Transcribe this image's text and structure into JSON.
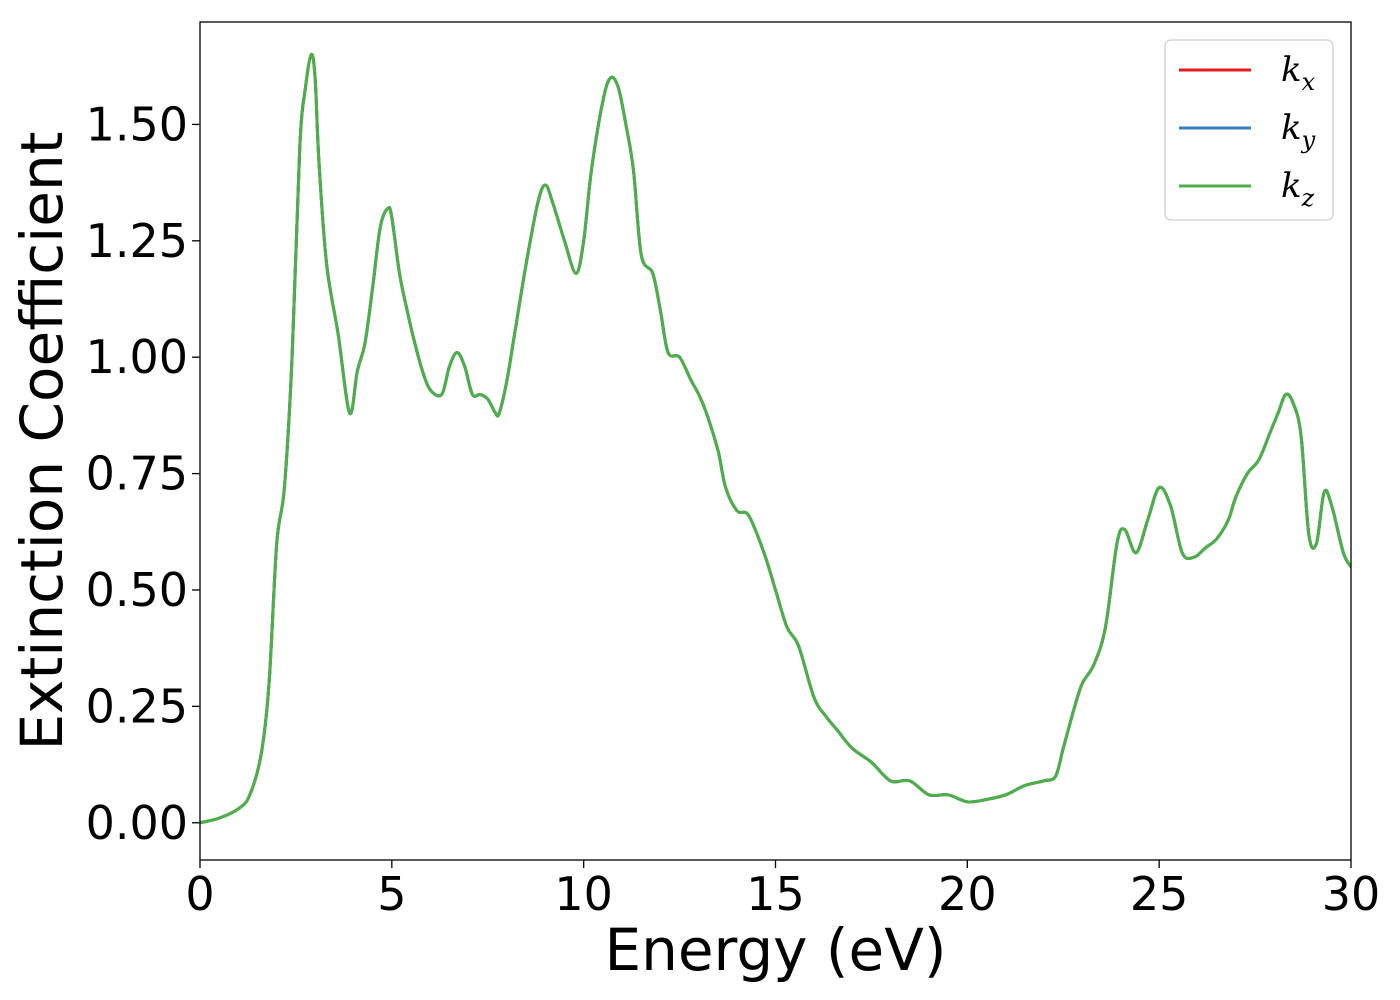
{
  "chart_data": {
    "type": "line",
    "title": "",
    "xlabel": "Energy (eV)",
    "ylabel": "Extinction Coefficient",
    "xlim": [
      0,
      30
    ],
    "ylim": [
      -0.08,
      1.72
    ],
    "xticks": [
      0,
      5,
      10,
      15,
      20,
      25,
      30
    ],
    "xtick_labels": [
      "0",
      "5",
      "10",
      "15",
      "20",
      "25",
      "30"
    ],
    "yticks": [
      0,
      0.25,
      0.5,
      0.75,
      1.0,
      1.25,
      1.5
    ],
    "ytick_labels": [
      "0.00",
      "0.25",
      "0.50",
      "0.75",
      "1.00",
      "1.25",
      "1.50"
    ],
    "grid": false,
    "legend": {
      "position": "top-right",
      "entries": [
        {
          "base": "k",
          "sub": "x",
          "color": "#e41a1c"
        },
        {
          "base": "k",
          "sub": "y",
          "color": "#377eb8"
        },
        {
          "base": "k",
          "sub": "z",
          "color": "#4daf4a"
        }
      ]
    },
    "x": [
      0,
      0.5,
      1.0,
      1.3,
      1.6,
      1.8,
      2.0,
      2.2,
      2.4,
      2.6,
      2.75,
      2.9,
      3.0,
      3.1,
      3.3,
      3.6,
      3.9,
      4.1,
      4.3,
      4.5,
      4.7,
      4.9,
      5.0,
      5.2,
      5.4,
      5.6,
      5.8,
      6.0,
      6.3,
      6.5,
      6.7,
      6.9,
      7.1,
      7.3,
      7.5,
      7.7,
      7.8,
      8.0,
      8.2,
      8.5,
      8.8,
      9.0,
      9.2,
      9.5,
      9.8,
      10.0,
      10.2,
      10.5,
      10.7,
      10.9,
      11.1,
      11.3,
      11.5,
      11.8,
      12.0,
      12.2,
      12.5,
      12.8,
      13.0,
      13.2,
      13.5,
      13.7,
      14.0,
      14.3,
      14.7,
      15.0,
      15.3,
      15.6,
      16.0,
      16.3,
      16.6,
      17.0,
      17.5,
      18.0,
      18.5,
      19.0,
      19.5,
      20.0,
      20.5,
      21.0,
      21.5,
      22.0,
      22.3,
      22.5,
      22.8,
      23.0,
      23.3,
      23.6,
      23.9,
      24.1,
      24.4,
      24.7,
      25.0,
      25.3,
      25.6,
      25.9,
      26.2,
      26.5,
      26.8,
      27.0,
      27.3,
      27.6,
      27.9,
      28.1,
      28.3,
      28.5,
      28.7,
      28.9,
      29.1,
      29.3,
      29.5,
      29.8,
      30.0
    ],
    "series": [
      {
        "name": "k_x",
        "color": "#e41a1c",
        "values": [
          0.0,
          0.01,
          0.03,
          0.06,
          0.15,
          0.3,
          0.6,
          0.72,
          1.0,
          1.45,
          1.58,
          1.65,
          1.6,
          1.42,
          1.2,
          1.05,
          0.88,
          0.97,
          1.03,
          1.15,
          1.28,
          1.32,
          1.3,
          1.18,
          1.1,
          1.03,
          0.97,
          0.93,
          0.92,
          0.98,
          1.01,
          0.98,
          0.92,
          0.92,
          0.91,
          0.88,
          0.88,
          0.95,
          1.05,
          1.2,
          1.33,
          1.37,
          1.33,
          1.25,
          1.18,
          1.25,
          1.4,
          1.55,
          1.6,
          1.58,
          1.5,
          1.4,
          1.22,
          1.18,
          1.1,
          1.01,
          1.0,
          0.95,
          0.92,
          0.88,
          0.8,
          0.72,
          0.67,
          0.66,
          0.58,
          0.5,
          0.42,
          0.38,
          0.27,
          0.23,
          0.2,
          0.16,
          0.13,
          0.09,
          0.09,
          0.06,
          0.06,
          0.045,
          0.05,
          0.06,
          0.08,
          0.09,
          0.1,
          0.16,
          0.25,
          0.3,
          0.34,
          0.42,
          0.6,
          0.63,
          0.58,
          0.65,
          0.72,
          0.68,
          0.58,
          0.57,
          0.59,
          0.61,
          0.65,
          0.7,
          0.75,
          0.78,
          0.84,
          0.88,
          0.92,
          0.9,
          0.83,
          0.62,
          0.6,
          0.71,
          0.68,
          0.58,
          0.55
        ]
      },
      {
        "name": "k_y",
        "color": "#377eb8",
        "values": [
          0.0,
          0.01,
          0.03,
          0.06,
          0.15,
          0.3,
          0.6,
          0.72,
          1.0,
          1.45,
          1.58,
          1.65,
          1.6,
          1.42,
          1.2,
          1.05,
          0.88,
          0.97,
          1.03,
          1.15,
          1.28,
          1.32,
          1.3,
          1.18,
          1.1,
          1.03,
          0.97,
          0.93,
          0.92,
          0.98,
          1.01,
          0.98,
          0.92,
          0.92,
          0.91,
          0.88,
          0.88,
          0.95,
          1.05,
          1.2,
          1.33,
          1.37,
          1.33,
          1.25,
          1.18,
          1.25,
          1.4,
          1.55,
          1.6,
          1.58,
          1.5,
          1.4,
          1.22,
          1.18,
          1.1,
          1.01,
          1.0,
          0.95,
          0.92,
          0.88,
          0.8,
          0.72,
          0.67,
          0.66,
          0.58,
          0.5,
          0.42,
          0.38,
          0.27,
          0.23,
          0.2,
          0.16,
          0.13,
          0.09,
          0.09,
          0.06,
          0.06,
          0.045,
          0.05,
          0.06,
          0.08,
          0.09,
          0.1,
          0.16,
          0.25,
          0.3,
          0.34,
          0.42,
          0.6,
          0.63,
          0.58,
          0.65,
          0.72,
          0.68,
          0.58,
          0.57,
          0.59,
          0.61,
          0.65,
          0.7,
          0.75,
          0.78,
          0.84,
          0.88,
          0.92,
          0.9,
          0.83,
          0.62,
          0.6,
          0.71,
          0.68,
          0.58,
          0.55
        ]
      },
      {
        "name": "k_z",
        "color": "#4daf4a",
        "values": [
          0.0,
          0.01,
          0.03,
          0.06,
          0.15,
          0.3,
          0.6,
          0.72,
          1.0,
          1.45,
          1.58,
          1.65,
          1.6,
          1.42,
          1.2,
          1.05,
          0.88,
          0.97,
          1.03,
          1.15,
          1.28,
          1.32,
          1.3,
          1.18,
          1.1,
          1.03,
          0.97,
          0.93,
          0.92,
          0.98,
          1.01,
          0.98,
          0.92,
          0.92,
          0.91,
          0.88,
          0.88,
          0.95,
          1.05,
          1.2,
          1.33,
          1.37,
          1.33,
          1.25,
          1.18,
          1.25,
          1.4,
          1.55,
          1.6,
          1.58,
          1.5,
          1.4,
          1.22,
          1.18,
          1.1,
          1.01,
          1.0,
          0.95,
          0.92,
          0.88,
          0.8,
          0.72,
          0.67,
          0.66,
          0.58,
          0.5,
          0.42,
          0.38,
          0.27,
          0.23,
          0.2,
          0.16,
          0.13,
          0.09,
          0.09,
          0.06,
          0.06,
          0.045,
          0.05,
          0.06,
          0.08,
          0.09,
          0.1,
          0.16,
          0.25,
          0.3,
          0.34,
          0.42,
          0.6,
          0.63,
          0.58,
          0.65,
          0.72,
          0.68,
          0.58,
          0.57,
          0.59,
          0.61,
          0.65,
          0.7,
          0.75,
          0.78,
          0.84,
          0.88,
          0.92,
          0.9,
          0.83,
          0.62,
          0.6,
          0.71,
          0.68,
          0.58,
          0.55
        ]
      }
    ]
  }
}
